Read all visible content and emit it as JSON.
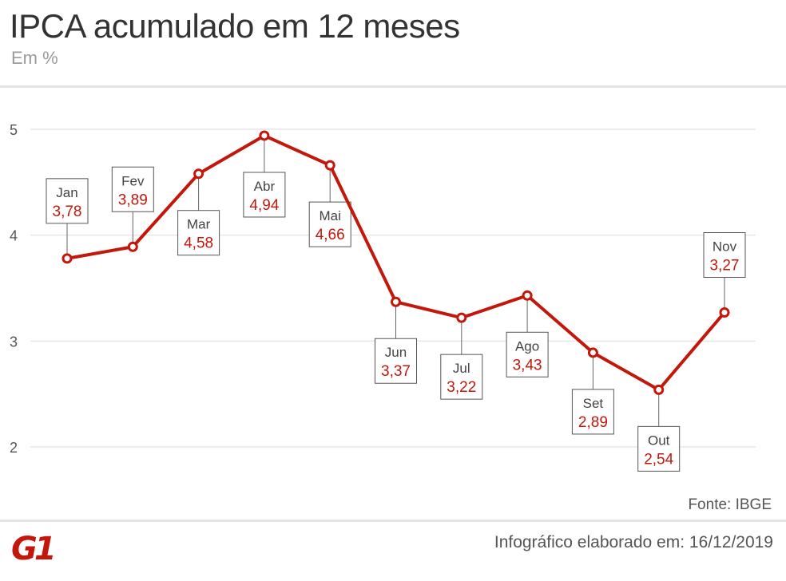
{
  "header": {
    "title": "IPCA acumulado em 12 meses",
    "subtitle": "Em %"
  },
  "footer": {
    "source": "Fonte: IBGE",
    "note": "Infográfico elaborado em: 16/12/2019",
    "logo_text": "G1",
    "logo_color": "#c4170c"
  },
  "chart_data": {
    "type": "line",
    "title": "IPCA acumulado em 12 meses",
    "subtitle": "Em %",
    "categories": [
      "Jan",
      "Fev",
      "Mar",
      "Abr",
      "Mai",
      "Jun",
      "Jul",
      "Ago",
      "Set",
      "Out",
      "Nov"
    ],
    "values": [
      3.78,
      3.89,
      4.58,
      4.94,
      4.66,
      3.37,
      3.22,
      3.43,
      2.89,
      2.54,
      3.27
    ],
    "value_labels": [
      "3,78",
      "3,89",
      "4,58",
      "4,94",
      "4,66",
      "3,37",
      "3,22",
      "3,43",
      "2,89",
      "2,54",
      "3,27"
    ],
    "label_position": [
      "above",
      "above",
      "below",
      "below",
      "below",
      "below",
      "below",
      "below",
      "below",
      "below",
      "above"
    ],
    "ylim": [
      2,
      5
    ],
    "yticks": [
      2,
      3,
      4,
      5
    ],
    "grid": true,
    "legend": "none",
    "line_color": "#c4170c",
    "grid_color": "#e6e6e6"
  }
}
